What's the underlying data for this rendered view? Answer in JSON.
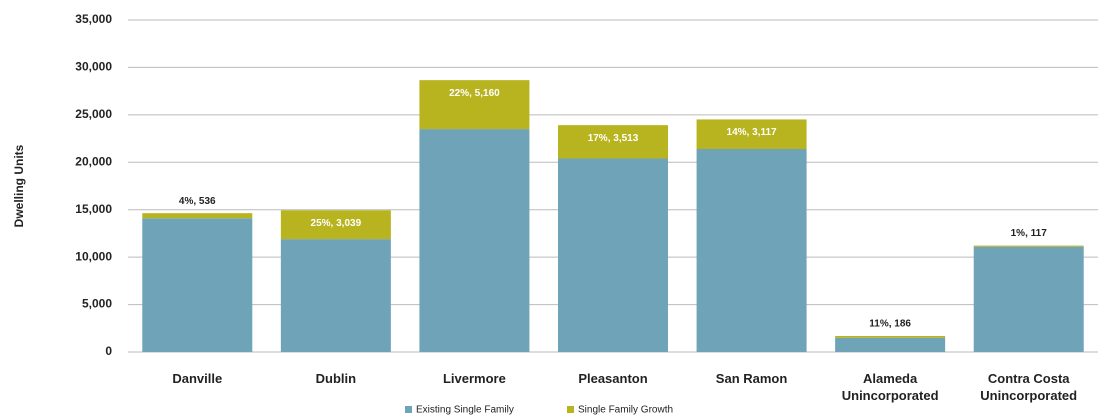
{
  "chart_data": {
    "type": "bar",
    "stacked": true,
    "y_label": "Dwelling Units",
    "categories": [
      "Danville",
      "Dublin",
      "Livermore",
      "Pleasanton",
      "San Ramon",
      "Alameda Unincorporated",
      "Contra Costa Unincorporated"
    ],
    "series": [
      {
        "name": "Existing Single Family",
        "color": "#6ea3b8",
        "values": [
          14100,
          11900,
          23500,
          20400,
          21400,
          1500,
          11100
        ]
      },
      {
        "name": "Single Family Growth",
        "color": "#b8b420",
        "values": [
          536,
          3039,
          5160,
          3513,
          3117,
          186,
          117
        ],
        "value_labels": [
          "4%, 536",
          "25%, 3,039",
          "22%, 5,160",
          "17%, 3,513",
          "14%, 3,117",
          "11%, 186",
          "1%, 117"
        ]
      }
    ],
    "ylim": [
      0,
      35000
    ],
    "yticks": [
      0,
      {
        "value": 5000,
        "label": "5,000"
      },
      {
        "value": 10000,
        "label": "10,000"
      },
      {
        "value": 15000,
        "label": "15,000"
      },
      {
        "value": 20000,
        "label": "20,000"
      },
      {
        "value": 25000,
        "label": "25,000"
      },
      {
        "value": 30000,
        "label": "30,000"
      },
      {
        "value": 35000,
        "label": "35,000"
      }
    ],
    "grid": true
  }
}
